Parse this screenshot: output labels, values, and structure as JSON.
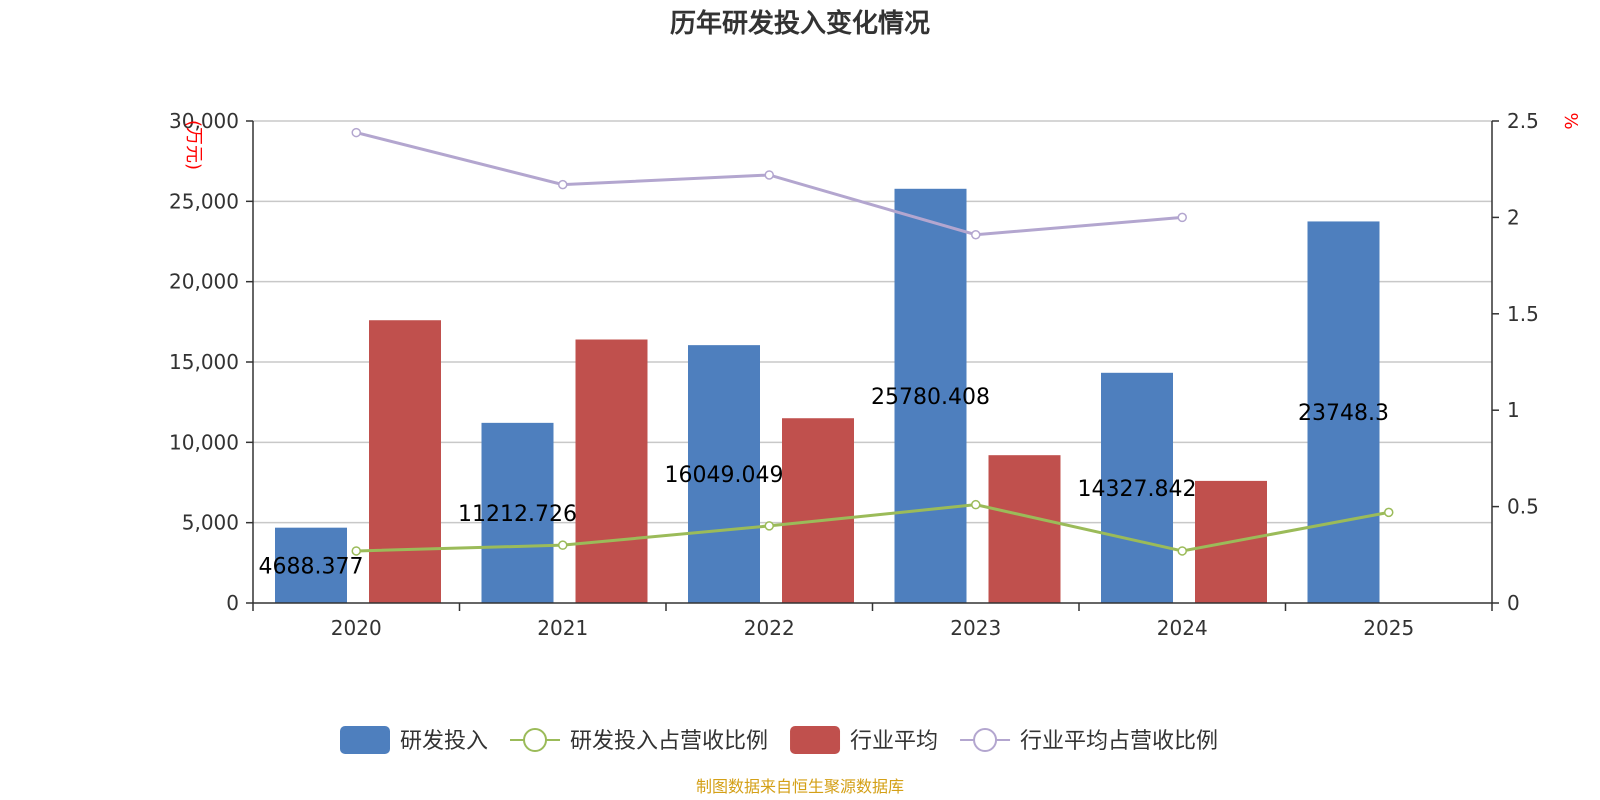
{
  "chart_data": {
    "type": "bar",
    "title": "历年研发投入变化情况",
    "categories": [
      "2020",
      "2021",
      "2022",
      "2023",
      "2024",
      "2025"
    ],
    "left_axis": {
      "unit": "(万元)",
      "ylim": [
        0,
        30000
      ],
      "ticks": [
        0,
        5000,
        10000,
        15000,
        20000,
        25000,
        30000
      ],
      "tick_labels": [
        "0",
        "5,000",
        "10,000",
        "15,000",
        "20,000",
        "25,000",
        "30,000"
      ]
    },
    "right_axis": {
      "unit": "%",
      "ylim": [
        0,
        2.5
      ],
      "ticks": [
        0,
        0.5,
        1,
        1.5,
        2,
        2.5
      ],
      "tick_labels": [
        "0",
        "0.5",
        "1",
        "1.5",
        "2",
        "2.5"
      ]
    },
    "series": [
      {
        "name": "研发投入",
        "kind": "bar",
        "axis": "left",
        "color": "#4e7fbe",
        "values": [
          4688.377,
          11212.726,
          16049.049,
          25780.408,
          14327.842,
          23748.3
        ],
        "labels": [
          "4688.377",
          "11212.726",
          "16049.049",
          "25780.408",
          "14327.842",
          "23748.3"
        ]
      },
      {
        "name": "研发投入占营收比例",
        "kind": "line",
        "axis": "right",
        "color": "#9bbb59",
        "values": [
          0.27,
          0.3,
          0.4,
          0.51,
          0.27,
          0.47
        ]
      },
      {
        "name": "行业平均",
        "kind": "bar",
        "axis": "left",
        "color": "#c0504d",
        "values": [
          17600,
          16400,
          11500,
          9200,
          7600,
          null
        ]
      },
      {
        "name": "行业平均占营收比例",
        "kind": "line",
        "axis": "right",
        "color": "#b3a6cf",
        "values": [
          2.44,
          2.17,
          2.22,
          1.91,
          2.0,
          null
        ]
      }
    ],
    "legend_position": "bottom",
    "grid": true
  },
  "source_text": "制图数据来自恒生聚源数据库"
}
